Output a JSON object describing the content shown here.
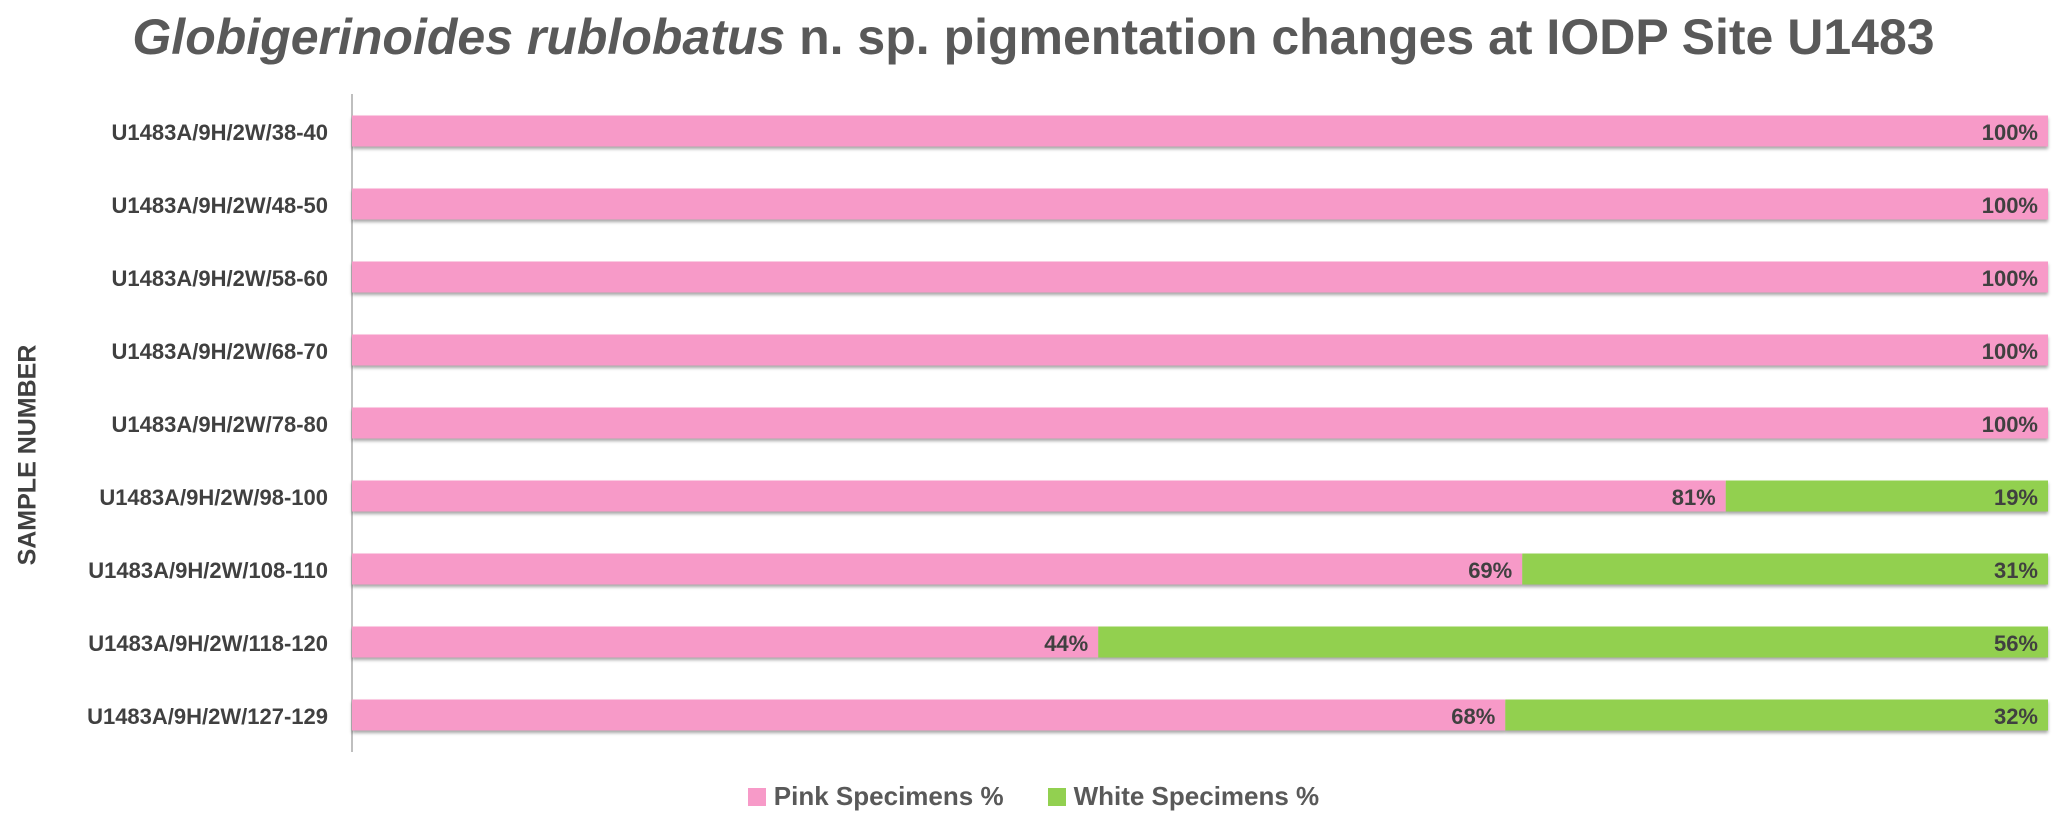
{
  "title": {
    "italic": "Globigerinoides rublobatus",
    "rest": " n. sp. pigmentation changes at IODP Site U1483"
  },
  "colors": {
    "pink": "#f79ac8",
    "green": "#92d050",
    "label": "#404040",
    "axis": "#bfbfbf"
  },
  "chart_data": {
    "type": "bar",
    "orientation": "horizontal",
    "stacked": true,
    "normalized_percent": true,
    "title": "Globigerinoides rublobatus n. sp. pigmentation changes at IODP Site U1483",
    "xlabel": "",
    "ylabel": "SAMPLE NUMBER",
    "xlim": [
      0,
      100
    ],
    "grid": false,
    "legend_position": "bottom",
    "categories": [
      "U1483A/9H/2W/38-40",
      "U1483A/9H/2W/48-50",
      "U1483A/9H/2W/58-60",
      "U1483A/9H/2W/68-70",
      "U1483A/9H/2W/78-80",
      "U1483A/9H/2W/98-100",
      "U1483A/9H/2W/108-110",
      "U1483A/9H/2W/118-120",
      "U1483A/9H/2W/127-129"
    ],
    "series": [
      {
        "name": "Pink Specimens %",
        "color": "#f79ac8",
        "values": [
          100,
          100,
          100,
          100,
          100,
          81,
          69,
          44,
          68
        ],
        "labels": [
          "",
          "",
          "",
          "",
          "",
          "81%",
          "69%",
          "44%",
          "68%"
        ]
      },
      {
        "name": "White Specimens %",
        "color": "#92d050",
        "values": [
          0,
          0,
          0,
          0,
          0,
          19,
          31,
          56,
          32
        ],
        "labels": [
          "100%",
          "100%",
          "100%",
          "100%",
          "100%",
          "19%",
          "31%",
          "56%",
          "32%"
        ]
      }
    ]
  }
}
